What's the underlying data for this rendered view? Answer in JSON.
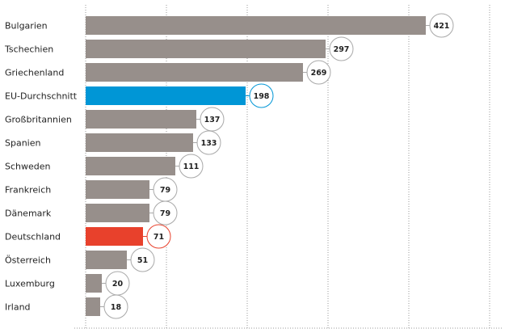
{
  "chart_data": {
    "type": "bar",
    "orientation": "horizontal",
    "categories": [
      "Bulgarien",
      "Tschechien",
      "Griechenland",
      "EU-Durchschnitt",
      "Großbritannien",
      "Spanien",
      "Schweden",
      "Frankreich",
      "Dänemark",
      "Deutschland",
      "Österreich",
      "Luxemburg",
      "Irland"
    ],
    "values": [
      421,
      297,
      269,
      198,
      137,
      133,
      111,
      79,
      79,
      71,
      51,
      20,
      18
    ],
    "value_labels": [
      "421",
      "297",
      "269",
      "198",
      "137",
      "133",
      "111",
      "79",
      "79",
      "71",
      "51",
      "20",
      "18"
    ],
    "colors": [
      "#978f8b",
      "#978f8b",
      "#978f8b",
      "#0096d6",
      "#978f8b",
      "#978f8b",
      "#978f8b",
      "#978f8b",
      "#978f8b",
      "#e8412c",
      "#978f8b",
      "#978f8b",
      "#978f8b"
    ],
    "default_color": "#978f8b",
    "xlim": [
      0,
      500
    ],
    "grid": true,
    "grid_style": "dotted vertical",
    "title": "",
    "xlabel": "",
    "ylabel": ""
  }
}
